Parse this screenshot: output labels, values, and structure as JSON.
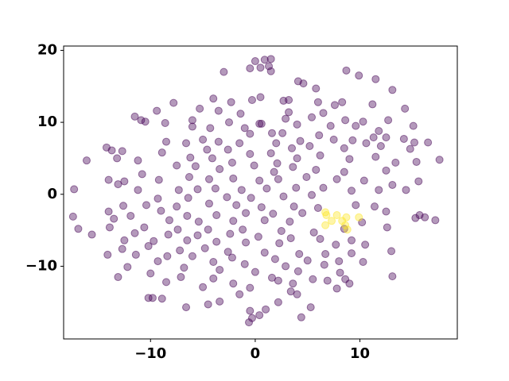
{
  "chart_data": {
    "type": "scatter",
    "xlim": [
      -18.3,
      19.3
    ],
    "ylim": [
      -20.1,
      20.6
    ],
    "xticks": [
      {
        "value": -10,
        "label": "−10"
      },
      0,
      10
    ],
    "yticks": [
      {
        "value": -10,
        "label": "−10"
      },
      0,
      10,
      20
    ],
    "series": [
      {
        "color": "#440154",
        "points": [
          [
            0.9,
            18.7
          ],
          [
            1.5,
            18.8
          ],
          [
            0,
            18.5
          ],
          [
            0.5,
            17.6
          ],
          [
            1.3,
            17.8
          ],
          [
            -0.5,
            17.5
          ],
          [
            1.5,
            17.1
          ],
          [
            -3,
            17
          ],
          [
            8.7,
            17.2
          ],
          [
            9.9,
            16.5
          ],
          [
            11.5,
            16
          ],
          [
            4.1,
            15.7
          ],
          [
            4.6,
            15.4
          ],
          [
            5.8,
            14.7
          ],
          [
            13.1,
            14.5
          ],
          [
            -0.3,
            13.1
          ],
          [
            0.5,
            13.5
          ],
          [
            2.7,
            13
          ],
          [
            3.2,
            13.1
          ],
          [
            -4,
            13.3
          ],
          [
            -2.3,
            12.8
          ],
          [
            -7.8,
            12.7
          ],
          [
            6,
            12.8
          ],
          [
            7.6,
            12.4
          ],
          [
            8.3,
            12.8
          ],
          [
            11.2,
            12.5
          ],
          [
            14.3,
            11.9
          ],
          [
            -9.4,
            11.6
          ],
          [
            -5.3,
            11.9
          ],
          [
            -3.5,
            11.6
          ],
          [
            -1.4,
            11.2
          ],
          [
            6.5,
            11.3
          ],
          [
            3.2,
            11.4
          ],
          [
            -11.5,
            10.8
          ],
          [
            -10.9,
            10.3
          ],
          [
            -10.5,
            10.1
          ],
          [
            -8.6,
            9.9
          ],
          [
            -6,
            10.3
          ],
          [
            -2.5,
            10
          ],
          [
            0.4,
            9.8
          ],
          [
            0.6,
            9.8
          ],
          [
            2.9,
            10.5
          ],
          [
            5.4,
            10.7
          ],
          [
            8.6,
            10.3
          ],
          [
            10.3,
            10.1
          ],
          [
            12.7,
            10.3
          ],
          [
            15.1,
            9.5
          ],
          [
            -6,
            9.4
          ],
          [
            -4.3,
            9.2
          ],
          [
            -1,
            9.2
          ],
          [
            4,
            9.7
          ],
          [
            7.2,
            9.5
          ],
          [
            9.6,
            9.5
          ],
          [
            11.8,
            8.8
          ],
          [
            -0.5,
            8.4
          ],
          [
            1.6,
            8.5
          ],
          [
            2.6,
            8.5
          ],
          [
            6.1,
            8.2
          ],
          [
            11.3,
            7.9
          ],
          [
            12.5,
            7.9
          ],
          [
            14.2,
            7.7
          ],
          [
            -8.5,
            7.3
          ],
          [
            -5,
            7.6
          ],
          [
            -3.5,
            7.3
          ],
          [
            -6.6,
            7.1
          ],
          [
            -1.5,
            7.1
          ],
          [
            2,
            7.1
          ],
          [
            4.3,
            7.4
          ],
          [
            7.5,
            7.6
          ],
          [
            9.3,
            7.5
          ],
          [
            10.6,
            7.1
          ],
          [
            15.2,
            7.2
          ],
          [
            16.5,
            7.2
          ],
          [
            -14.2,
            6.5
          ],
          [
            -13.7,
            6.1
          ],
          [
            -12.7,
            6
          ],
          [
            -8.9,
            5.8
          ],
          [
            -4.6,
            6.2
          ],
          [
            -2.6,
            6.2
          ],
          [
            -0.5,
            5.6
          ],
          [
            1.5,
            5.7
          ],
          [
            3.5,
            6.4
          ],
          [
            5.2,
            6.7
          ],
          [
            8.5,
            6.4
          ],
          [
            12,
            6.7
          ],
          [
            14.8,
            6.3
          ],
          [
            -16.1,
            4.7
          ],
          [
            -13.2,
            5
          ],
          [
            -11.2,
            4.7
          ],
          [
            -6.2,
            5.1
          ],
          [
            -4.1,
            5
          ],
          [
            -2.2,
            4.4
          ],
          [
            -0.1,
            4
          ],
          [
            2.1,
            4.3
          ],
          [
            4,
            5
          ],
          [
            6.2,
            5.4
          ],
          [
            9,
            4.9
          ],
          [
            11.5,
            5.2
          ],
          [
            13.4,
            4.4
          ],
          [
            15.4,
            4.5
          ],
          [
            17.6,
            4.8
          ],
          [
            -10.8,
            2.8
          ],
          [
            -7.5,
            4
          ],
          [
            -5.7,
            3.9
          ],
          [
            -3.4,
            3.5
          ],
          [
            1.8,
            3.1
          ],
          [
            3.6,
            3.8
          ],
          [
            5.8,
            3.4
          ],
          [
            8.5,
            3.1
          ],
          [
            12.5,
            3.3
          ],
          [
            -14,
            2
          ],
          [
            -12.5,
            1.8
          ],
          [
            -9.2,
            2
          ],
          [
            -6.3,
            2.4
          ],
          [
            -4.4,
            2.1
          ],
          [
            -2.1,
            2.2
          ],
          [
            0.4,
            1.9
          ],
          [
            2.2,
            2.1
          ],
          [
            4.9,
            2.4
          ],
          [
            7.8,
            2.1
          ],
          [
            10.4,
            1.9
          ],
          [
            13.1,
            1.3
          ],
          [
            15.6,
            1.8
          ],
          [
            -17.3,
            0.7
          ],
          [
            -13.1,
            1.4
          ],
          [
            -11.2,
            0.6
          ],
          [
            -7.3,
            0.6
          ],
          [
            -5.5,
            0.7
          ],
          [
            -3.8,
            0.8
          ],
          [
            -1.3,
            0.6
          ],
          [
            1.1,
            0.8
          ],
          [
            3.9,
            0.9
          ],
          [
            6.5,
            0.9
          ],
          [
            9.2,
            0.5
          ],
          [
            11.8,
            0.6
          ],
          [
            14.4,
            0.6
          ],
          [
            -9.3,
            -0.6
          ],
          [
            -6.4,
            -0.5
          ],
          [
            -2.7,
            -0.4
          ],
          [
            -0.4,
            -0.5
          ],
          [
            2.7,
            -0.3
          ],
          [
            5.4,
            -0.1
          ],
          [
            -12.6,
            -1.6
          ],
          [
            -10.4,
            -1.5
          ],
          [
            -7.5,
            -1.7
          ],
          [
            -4.4,
            -1.3
          ],
          [
            -1.8,
            -1.5
          ],
          [
            0.6,
            -1.8
          ],
          [
            3.7,
            -1.7
          ],
          [
            6,
            -1.9
          ],
          [
            9.6,
            -1.5
          ],
          [
            11.4,
            -1.7
          ],
          [
            -14,
            -2.4
          ],
          [
            -11.9,
            -3
          ],
          [
            -9,
            -2.3
          ],
          [
            -6.5,
            -3
          ],
          [
            -3.7,
            -2.9
          ],
          [
            -0.9,
            -2.6
          ],
          [
            1.7,
            -2.7
          ],
          [
            4.5,
            -2.6
          ],
          [
            12.5,
            -2.4
          ],
          [
            15.7,
            -2.9
          ],
          [
            -17.4,
            -3.1
          ],
          [
            -13.5,
            -3.4
          ],
          [
            -8.2,
            -3.6
          ],
          [
            -5.4,
            -3.8
          ],
          [
            -2.1,
            -3.7
          ],
          [
            0.9,
            -3.6
          ],
          [
            3.3,
            -3.8
          ],
          [
            10.2,
            -3.9
          ],
          [
            16.2,
            -3.2
          ],
          [
            17.2,
            -3.6
          ],
          [
            15.3,
            -3.3
          ],
          [
            -16.9,
            -4.8
          ],
          [
            -13.9,
            -4.6
          ],
          [
            -10.6,
            -4.6
          ],
          [
            -7.4,
            -4.9
          ],
          [
            -4.5,
            -4.9
          ],
          [
            -1.2,
            -4.9
          ],
          [
            2.5,
            -5.1
          ],
          [
            5.6,
            -5.3
          ],
          [
            8.5,
            -4.8
          ],
          [
            12.6,
            -4.6
          ],
          [
            -15.6,
            -5.6
          ],
          [
            -11.5,
            -5.4
          ],
          [
            -8.3,
            -5.6
          ],
          [
            -5.5,
            -5.7
          ],
          [
            -2.4,
            -5.5
          ],
          [
            0.3,
            -5.9
          ],
          [
            3.4,
            -6.1
          ],
          [
            6.2,
            -6.2
          ],
          [
            9.2,
            -6.4
          ],
          [
            -12.5,
            -6.4
          ],
          [
            -9.7,
            -6.5
          ],
          [
            -6.5,
            -6.4
          ],
          [
            -3.7,
            -6.6
          ],
          [
            -0.9,
            -6.7
          ],
          [
            2.3,
            -6.8
          ],
          [
            7.7,
            -7
          ],
          [
            10.5,
            -7
          ],
          [
            -12.7,
            -7.6
          ],
          [
            -10.2,
            -7.2
          ],
          [
            -7.2,
            -7.8
          ],
          [
            -4.8,
            -7.5
          ],
          [
            -2.6,
            -8
          ],
          [
            0.9,
            -8.1
          ],
          [
            4.2,
            -8.3
          ],
          [
            6.7,
            -8.3
          ],
          [
            9.2,
            -8.2
          ],
          [
            13,
            -7.9
          ],
          [
            -14.1,
            -8.4
          ],
          [
            -11.4,
            -8.4
          ],
          [
            -8.4,
            -8.6
          ],
          [
            -6,
            -8.6
          ],
          [
            -2.2,
            -8.8
          ],
          [
            1.9,
            -9
          ],
          [
            5,
            -9.2
          ],
          [
            8,
            -9.3
          ],
          [
            10.3,
            -9.4
          ],
          [
            -9.3,
            -9.3
          ],
          [
            -4,
            -9.4
          ],
          [
            -1,
            -9.7
          ],
          [
            2.9,
            -10
          ],
          [
            6.6,
            -9.8
          ],
          [
            -12.2,
            -10.1
          ],
          [
            -6.8,
            -10.2
          ],
          [
            -3.4,
            -10.5
          ],
          [
            0,
            -10.8
          ],
          [
            4.1,
            -10.7
          ],
          [
            8.1,
            -10.9
          ],
          [
            -10,
            -11
          ],
          [
            -7.1,
            -11.5
          ],
          [
            -4,
            -11.7
          ],
          [
            1.6,
            -11.6
          ],
          [
            5.5,
            -11.8
          ],
          [
            -13.1,
            -11.5
          ],
          [
            -8.5,
            -12.2
          ],
          [
            -2.1,
            -12.4
          ],
          [
            2.2,
            -12
          ],
          [
            3.6,
            -12.4
          ],
          [
            6.9,
            -12
          ],
          [
            8.6,
            -11.8
          ],
          [
            9,
            -12.4
          ],
          [
            13.1,
            -11.4
          ],
          [
            -5,
            -12.9
          ],
          [
            -0.5,
            -13
          ],
          [
            3.4,
            -13.5
          ],
          [
            7.8,
            -13.1
          ],
          [
            -1.5,
            -13.9
          ],
          [
            4,
            -13.9
          ],
          [
            -10.2,
            -14.4
          ],
          [
            -9.8,
            -14.4
          ],
          [
            -8.9,
            -14.5
          ],
          [
            -3.4,
            -14.9
          ],
          [
            -4.5,
            -15.3
          ],
          [
            2.2,
            -15
          ],
          [
            -6.6,
            -15.7
          ],
          [
            5.3,
            -15.7
          ],
          [
            -0.5,
            -16.2
          ],
          [
            1,
            -16
          ],
          [
            0.4,
            -16.8
          ],
          [
            -0.3,
            -17.2
          ],
          [
            -0.6,
            -17.8
          ],
          [
            4.4,
            -17.1
          ]
        ]
      },
      {
        "color": "#fde725",
        "points": [
          [
            6.7,
            -2.5
          ],
          [
            6.8,
            -2.9
          ],
          [
            7.3,
            -3.7
          ],
          [
            6.7,
            -4.3
          ],
          [
            8.3,
            -3.7
          ],
          [
            8.7,
            -3.2
          ],
          [
            8.6,
            -4.3
          ],
          [
            8.8,
            -4.9
          ],
          [
            9.9,
            -3.2
          ],
          [
            7.8,
            -2.9
          ]
        ]
      }
    ]
  }
}
